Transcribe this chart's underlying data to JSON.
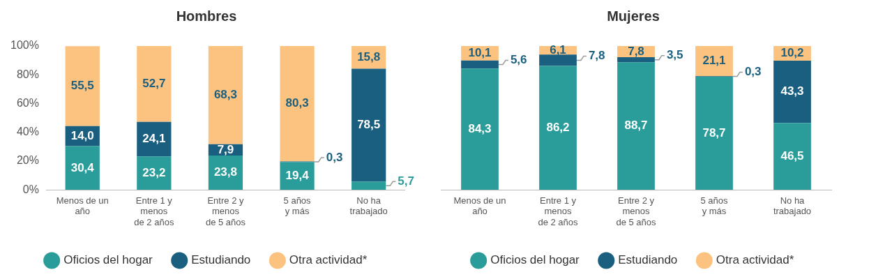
{
  "chart_data": [
    {
      "type": "bar",
      "title": "Hombres",
      "stacked": true,
      "legend": "bottom",
      "grid": false,
      "marker": "circle",
      "categories": [
        "Menos de un\naño",
        "Entre 1 y\nmenos\nde 2 años",
        "Entre 2 y\nmenos\nde 5 años",
        "5 años\ny más",
        "No ha\ntrabajado"
      ],
      "ylim": [
        0,
        100
      ],
      "yticks": [
        {
          "value": 0,
          "label": "0%"
        },
        {
          "value": 20,
          "label": "20%"
        },
        {
          "value": 40,
          "label": "40%"
        },
        {
          "value": 60,
          "label": "60%"
        },
        {
          "value": 80,
          "label": "80%"
        },
        {
          "value": 100,
          "label": "100%"
        }
      ],
      "series": [
        {
          "name": "Oficios del hogar",
          "color": "#2a9d9a",
          "values": [
            30.4,
            23.2,
            23.8,
            19.4,
            5.7
          ],
          "value_labels": [
            "30,4",
            "23,2",
            "23,8",
            "19,4",
            "5,7"
          ]
        },
        {
          "name": "Estudiando",
          "color": "#1a5f7f",
          "values": [
            14.0,
            24.1,
            7.9,
            0.3,
            78.5
          ],
          "value_labels": [
            "14,0",
            "24,1",
            "7,9",
            "0,3",
            "78,5"
          ]
        },
        {
          "name": "Otra actividad*",
          "color": "#fcc27f",
          "values": [
            55.5,
            52.7,
            68.3,
            80.3,
            15.8
          ],
          "value_labels": [
            "55,5",
            "52,7",
            "68,3",
            "80,3",
            "15,8"
          ]
        }
      ]
    },
    {
      "type": "bar",
      "title": "Mujeres",
      "stacked": true,
      "legend": "bottom",
      "grid": false,
      "marker": "circle",
      "tick_labels": "x",
      "categories": [
        "Menos de un\naño",
        "Entre 1 y\nmenos\nde 2 años",
        "Entre 2 y\nmenos\nde 5 años",
        "5 años\ny más",
        "No ha\ntrabajado"
      ],
      "ylim": [
        0,
        100
      ],
      "series": [
        {
          "name": "Oficios del hogar",
          "color": "#2a9d9a",
          "values": [
            84.3,
            86.2,
            88.7,
            78.7,
            46.5
          ],
          "value_labels": [
            "84,3",
            "86,2",
            "88,7",
            "78,7",
            "46,5"
          ]
        },
        {
          "name": "Estudiando",
          "color": "#1a5f7f",
          "values": [
            5.6,
            7.8,
            3.5,
            0.3,
            43.3
          ],
          "value_labels": [
            "5,6",
            "7,8",
            "3,5",
            "0,3",
            "43,3"
          ]
        },
        {
          "name": "Otra actividad*",
          "color": "#fcc27f",
          "values": [
            10.1,
            6.1,
            7.8,
            21.1,
            10.2
          ],
          "value_labels": [
            "10,1",
            "6,1",
            "7,8",
            "21,1",
            "10,2"
          ]
        }
      ]
    }
  ]
}
